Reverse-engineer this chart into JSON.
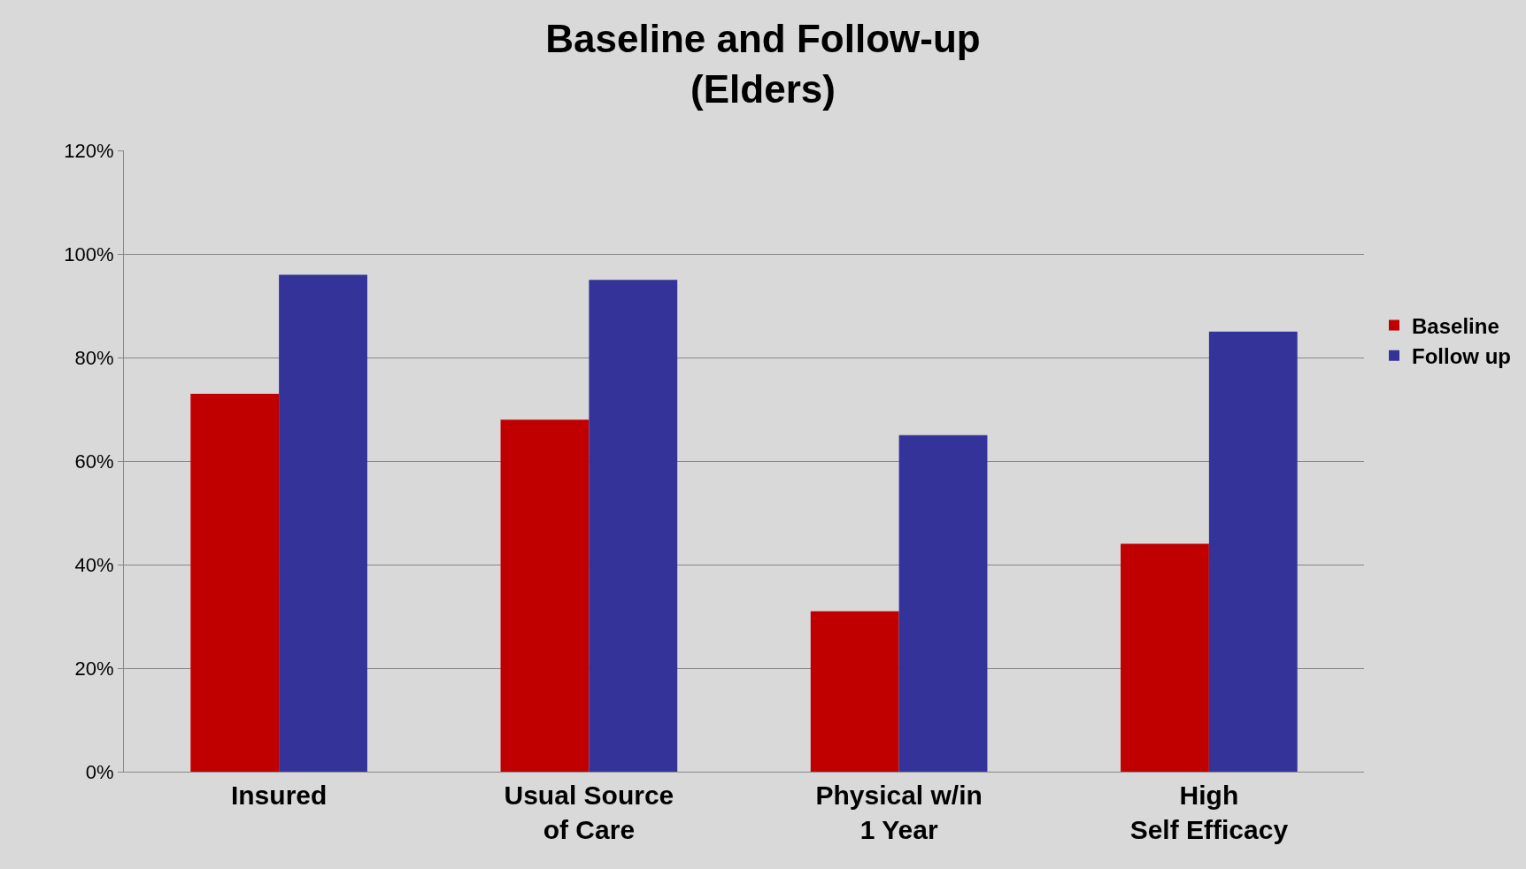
{
  "chart_data": {
    "type": "bar",
    "title": "Baseline and Follow-up\n(Elders)",
    "categories": [
      "Insured",
      "Usual Source of Care",
      "Physical w/in 1 Year",
      "High Self Efficacy"
    ],
    "series": [
      {
        "name": "Baseline",
        "color": "#c00000",
        "values": [
          73,
          68,
          31,
          44
        ]
      },
      {
        "name": "Follow up",
        "color": "#333399",
        "values": [
          96,
          95,
          65,
          85
        ]
      }
    ],
    "ylim": [
      0,
      120
    ],
    "yticks": [
      {
        "value": 0,
        "label": "0%"
      },
      {
        "value": 20,
        "label": "20%"
      },
      {
        "value": 40,
        "label": "40%"
      },
      {
        "value": 60,
        "label": "60%"
      },
      {
        "value": 80,
        "label": "80%"
      },
      {
        "value": 100,
        "label": "100%"
      },
      {
        "value": 120,
        "label": "120%"
      }
    ],
    "grid": "y",
    "legend": "right"
  }
}
